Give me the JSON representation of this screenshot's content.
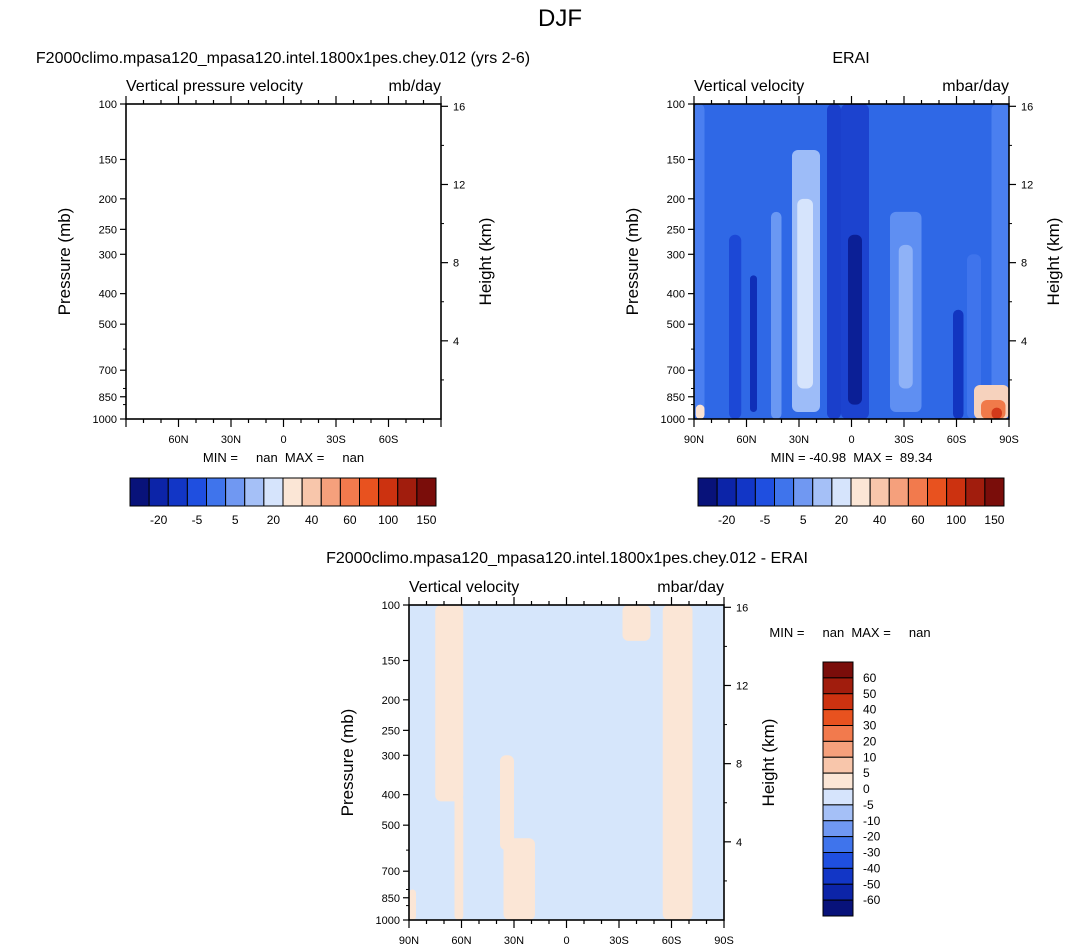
{
  "figure": {
    "title": "DJF"
  },
  "chart_data": [
    {
      "id": "model",
      "type": "contour",
      "title": "F2000climo.mpasa120_mpasa120.intel.1800x1pes.chey.012 (yrs 2-6)",
      "left_label": "Vertical pressure velocity",
      "right_label": "mb/day",
      "ylabel": "Pressure (mb)",
      "ylabel_right": "Height (km)",
      "ylim": [
        1000,
        100
      ],
      "yticks": [
        "100",
        "150",
        "200",
        "250",
        "300",
        "400",
        "500",
        "700",
        "850",
        "1000"
      ],
      "ytick_values": [
        100,
        150,
        200,
        250,
        300,
        400,
        500,
        700,
        850,
        1000
      ],
      "height_ticks": [
        "16",
        "12",
        "8",
        "4"
      ],
      "height_tick_values": [
        16,
        12,
        8,
        4
      ],
      "xticks": [
        "60N",
        "30N",
        "0",
        "30S",
        "60S"
      ],
      "xtick_values": [
        60,
        30,
        0,
        -30,
        -60
      ],
      "xlim": [
        90,
        -90
      ],
      "stats": "MIN =     nan  MAX =     nan",
      "fill": "none"
    },
    {
      "id": "obs",
      "type": "contour",
      "title": "ERAI",
      "left_label": "Vertical velocity",
      "right_label": "mbar/day",
      "ylabel": "Pressure (mb)",
      "ylabel_right": "Height (km)",
      "ylim": [
        1000,
        100
      ],
      "yticks": [
        "100",
        "150",
        "200",
        "250",
        "300",
        "400",
        "500",
        "700",
        "850",
        "1000"
      ],
      "ytick_values": [
        100,
        150,
        200,
        250,
        300,
        400,
        500,
        700,
        850,
        1000
      ],
      "height_ticks": [
        "16",
        "12",
        "8",
        "4"
      ],
      "height_tick_values": [
        16,
        12,
        8,
        4
      ],
      "xticks": [
        "90N",
        "60N",
        "30N",
        "0",
        "30S",
        "60S",
        "90S"
      ],
      "xtick_values": [
        90,
        60,
        30,
        0,
        -30,
        -60,
        -90
      ],
      "xlim": [
        90,
        -90
      ],
      "stats": "MIN = -40.98  MAX =  89.34",
      "min": -40.98,
      "max": 89.34,
      "background_color": "#2f68e6",
      "bands": [
        {
          "lat_from": 90,
          "lat_to": 84,
          "p_top": 100,
          "p_bottom": 1000,
          "color": "#4a7ff0"
        },
        {
          "lat_from": 70,
          "lat_to": 63,
          "p_top": 260,
          "p_bottom": 1000,
          "color": "#1c48d6"
        },
        {
          "lat_from": 58,
          "lat_to": 54,
          "p_top": 350,
          "p_bottom": 950,
          "color": "#0f2fb8"
        },
        {
          "lat_from": 46,
          "lat_to": 40,
          "p_top": 220,
          "p_bottom": 1000,
          "color": "#6a98f3"
        },
        {
          "lat_from": 34,
          "lat_to": 18,
          "p_top": 140,
          "p_bottom": 950,
          "color": "#9dbcf8"
        },
        {
          "lat_from": 31,
          "lat_to": 22,
          "p_top": 200,
          "p_bottom": 800,
          "color": "#d6e4fc"
        },
        {
          "lat_from": 14,
          "lat_to": 6,
          "p_top": 100,
          "p_bottom": 1000,
          "color": "#1a3fcb"
        },
        {
          "lat_from": 6,
          "lat_to": -10,
          "p_top": 100,
          "p_bottom": 1000,
          "color": "#1c43cf"
        },
        {
          "lat_from": 2,
          "lat_to": -6,
          "p_top": 260,
          "p_bottom": 900,
          "color": "#0b1f96"
        },
        {
          "lat_from": -22,
          "lat_to": -40,
          "p_top": 220,
          "p_bottom": 950,
          "color": "#5f8ff2"
        },
        {
          "lat_from": -27,
          "lat_to": -35,
          "p_top": 280,
          "p_bottom": 800,
          "color": "#8fb2f7"
        },
        {
          "lat_from": -58,
          "lat_to": -64,
          "p_top": 450,
          "p_bottom": 1000,
          "color": "#1235c0"
        },
        {
          "lat_from": -66,
          "lat_to": -74,
          "p_top": 300,
          "p_bottom": 1000,
          "color": "#3f74ec"
        },
        {
          "lat_from": -80,
          "lat_to": -90,
          "p_top": 100,
          "p_bottom": 1000,
          "color": "#4a7ff0"
        },
        {
          "lat_from": -70,
          "lat_to": -90,
          "p_top": 780,
          "p_bottom": 1000,
          "color": "#f6d2bd"
        },
        {
          "lat_from": -74,
          "lat_to": -88,
          "p_top": 870,
          "p_bottom": 1000,
          "color": "#f07a4a"
        },
        {
          "lat_from": -80,
          "lat_to": -86,
          "p_top": 920,
          "p_bottom": 1000,
          "color": "#d43a1a"
        },
        {
          "lat_from": 89,
          "lat_to": 84,
          "p_top": 900,
          "p_bottom": 1000,
          "color": "#fbe2d2"
        }
      ]
    },
    {
      "id": "diff",
      "type": "contour",
      "title": "F2000climo.mpasa120_mpasa120.intel.1800x1pes.chey.012 - ERAI",
      "left_label": "Vertical velocity",
      "right_label": "mbar/day",
      "ylabel": "Pressure (mb)",
      "ylabel_right": "Height (km)",
      "ylim": [
        1000,
        100
      ],
      "yticks": [
        "100",
        "150",
        "200",
        "250",
        "300",
        "400",
        "500",
        "700",
        "850",
        "1000"
      ],
      "ytick_values": [
        100,
        150,
        200,
        250,
        300,
        400,
        500,
        700,
        850,
        1000
      ],
      "height_ticks": [
        "16",
        "12",
        "8",
        "4"
      ],
      "height_tick_values": [
        16,
        12,
        8,
        4
      ],
      "xticks": [
        "90N",
        "60N",
        "30N",
        "0",
        "30S",
        "60S",
        "90S"
      ],
      "xtick_values": [
        90,
        60,
        30,
        0,
        -30,
        -60,
        -90
      ],
      "xlim": [
        90,
        -90
      ],
      "stats": "MIN =     nan  MAX =     nan",
      "background_color": "#d6e6fb",
      "bands": [
        {
          "lat_from": 75,
          "lat_to": 59,
          "p_top": 100,
          "p_bottom": 420,
          "color": "#fbe6d6"
        },
        {
          "lat_from": 64,
          "lat_to": 59,
          "p_top": 400,
          "p_bottom": 1000,
          "color": "#fbe6d6"
        },
        {
          "lat_from": 38,
          "lat_to": 30,
          "p_top": 300,
          "p_bottom": 600,
          "color": "#fbe6d6"
        },
        {
          "lat_from": 36,
          "lat_to": 18,
          "p_top": 550,
          "p_bottom": 1000,
          "color": "#fbe6d6"
        },
        {
          "lat_from": 29,
          "lat_to": 22,
          "p_top": 900,
          "p_bottom": 1000,
          "color": "#fbe6d6"
        },
        {
          "lat_from": -32,
          "lat_to": -48,
          "p_top": 100,
          "p_bottom": 130,
          "color": "#fbe6d6"
        },
        {
          "lat_from": -55,
          "lat_to": -72,
          "p_top": 100,
          "p_bottom": 1000,
          "color": "#fbe6d6"
        },
        {
          "lat_from": 90,
          "lat_to": 86,
          "p_top": 800,
          "p_bottom": 1000,
          "color": "#fbe6d6"
        }
      ]
    }
  ],
  "colorbars": {
    "full": {
      "labels": [
        "-20",
        "-5",
        "5",
        "20",
        "40",
        "60",
        "100",
        "150"
      ],
      "colors": [
        "#08127a",
        "#0c24a8",
        "#1236c6",
        "#1f4fe0",
        "#3f74ec",
        "#7098f2",
        "#a5c0f7",
        "#d6e4fc",
        "#fbe6d6",
        "#f8c6ab",
        "#f5a07c",
        "#f27a4d",
        "#e8521f",
        "#cc3210",
        "#a11d0d",
        "#7a0d0a"
      ]
    },
    "diff": {
      "labels": [
        "60",
        "50",
        "40",
        "30",
        "20",
        "10",
        "5",
        "0",
        "-5",
        "-10",
        "-20",
        "-30",
        "-40",
        "-50",
        "-60"
      ],
      "colors": [
        "#7a0d0a",
        "#a11d0d",
        "#cc3210",
        "#e8521f",
        "#f27a4d",
        "#f5a07c",
        "#f8c6ab",
        "#fbe6d6",
        "#d6e4fc",
        "#a5c0f7",
        "#7098f2",
        "#3f74ec",
        "#1f4fe0",
        "#1236c6",
        "#0c24a8",
        "#08127a"
      ]
    }
  }
}
